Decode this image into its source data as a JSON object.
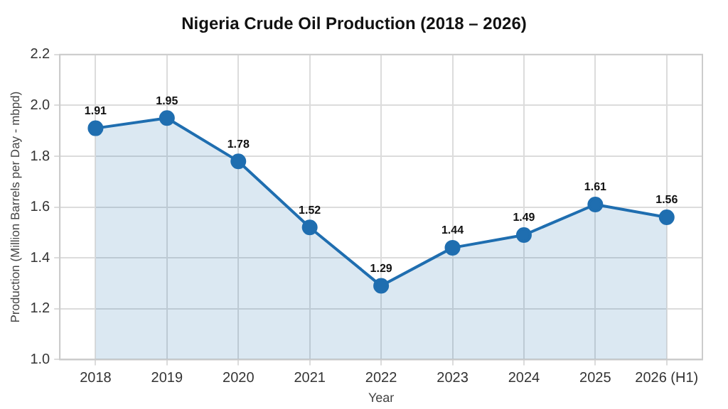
{
  "chart_data": {
    "type": "area",
    "title": "Nigeria Crude Oil Production (2018 – 2026)",
    "xlabel": "Year",
    "ylabel": "Production (Million Barrels per Day - mbpd)",
    "categories": [
      "2018",
      "2019",
      "2020",
      "2021",
      "2022",
      "2023",
      "2024",
      "2025",
      "2026 (H1)"
    ],
    "series": [
      {
        "color": "#1f6eb0",
        "values": [
          1.91,
          1.95,
          1.78,
          1.52,
          1.29,
          1.44,
          1.49,
          1.61,
          1.56
        ]
      }
    ],
    "ylim": [
      1.0,
      2.2
    ],
    "yticks": [
      {
        "value": 1.0,
        "label": "1.0"
      },
      {
        "value": 1.2,
        "label": "1.2"
      },
      {
        "value": 1.4,
        "label": "1.4"
      },
      {
        "value": 1.6,
        "label": "1.6"
      },
      {
        "value": 1.8,
        "label": "1.8"
      },
      {
        "value": 2.0,
        "label": "2.0"
      },
      {
        "value": 2.2,
        "label": "2.2"
      }
    ],
    "grid": true,
    "legend": false,
    "marker": "circle",
    "line_style": "solid",
    "data_labels": true
  }
}
